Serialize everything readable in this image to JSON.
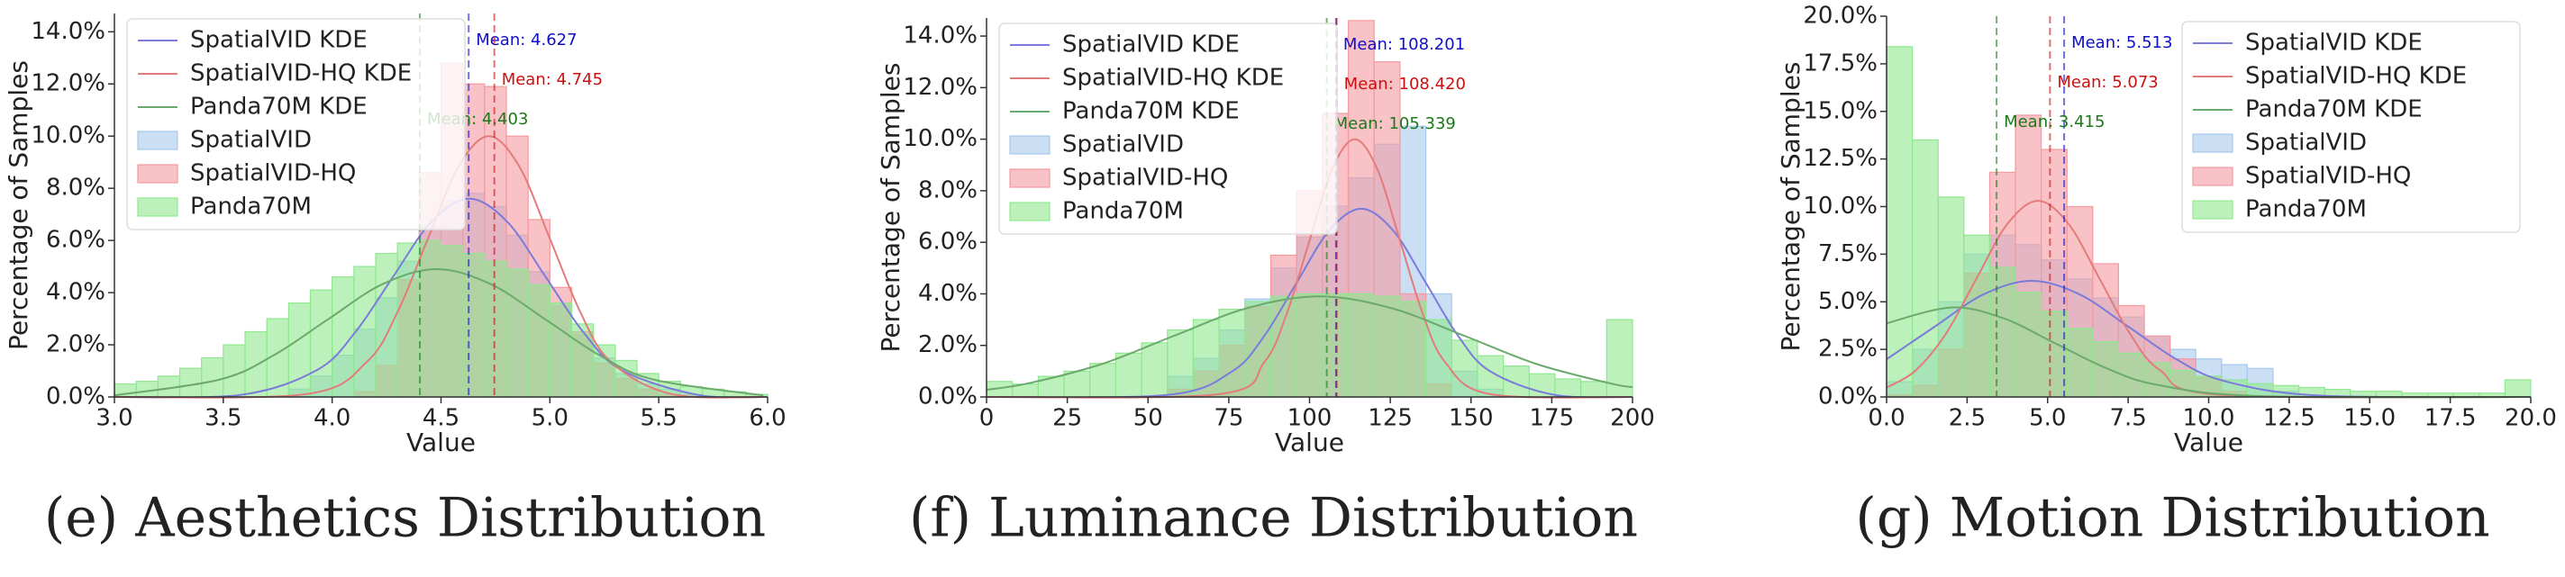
{
  "chart_data": [
    {
      "type": "histogram",
      "title": "(e) Aesthetics Distribution",
      "xlabel": "Value",
      "ylabel": "Percentage of Samples",
      "xlim": [
        3,
        6
      ],
      "ylim": [
        0,
        14.7
      ],
      "xticks": [
        {
          "value": 3,
          "label": "3.0"
        },
        3.5,
        {
          "value": 4,
          "label": "4.0"
        },
        4.5,
        {
          "value": 5,
          "label": "5.0"
        },
        5.5,
        {
          "value": 6,
          "label": "6.0"
        }
      ],
      "yticks": [
        {
          "value": 0,
          "label": "0.0%"
        },
        {
          "value": 2,
          "label": "2.0%"
        },
        {
          "value": 4,
          "label": "4.0%"
        },
        {
          "value": 6,
          "label": "6.0%"
        },
        {
          "value": 8,
          "label": "8.0%"
        },
        {
          "value": 10,
          "label": "10.0%"
        },
        {
          "value": 12,
          "label": "12.0%"
        },
        {
          "value": 14,
          "label": "14.0%"
        }
      ],
      "bins": [
        3.0,
        3.1,
        3.2,
        3.3,
        3.4,
        3.5,
        3.6,
        3.7,
        3.8,
        3.9,
        4.0,
        4.1,
        4.2,
        4.3,
        4.4,
        4.5,
        4.6,
        4.7,
        4.8,
        4.9,
        5.0,
        5.1,
        5.2,
        5.3,
        5.4,
        5.5,
        5.6,
        5.7,
        5.8,
        5.9,
        6.0
      ],
      "series": [
        {
          "name": "SpatialVID",
          "color": "#a6c8ec",
          "values": [
            0,
            0,
            0,
            0,
            0,
            0,
            0,
            0,
            0.3,
            0.8,
            1.6,
            2.6,
            3.8,
            5.2,
            6.5,
            7.5,
            7.8,
            7.3,
            6.2,
            4.8,
            3.5,
            2.4,
            1.5,
            0.9,
            0.5,
            0.3,
            0.1,
            0,
            0,
            0
          ]
        },
        {
          "name": "SpatialVID-HQ",
          "color": "#f59aa0",
          "values": [
            0,
            0,
            0,
            0,
            0,
            0,
            0,
            0,
            0,
            0,
            0,
            0.2,
            1.2,
            4.5,
            8.6,
            12.8,
            12.0,
            11.9,
            10.0,
            6.8,
            4.2,
            2.5,
            1.3,
            0.7,
            0.3,
            0.1,
            0,
            0,
            0,
            0
          ]
        },
        {
          "name": "Panda70M",
          "color": "#8fe88f",
          "values": [
            0.5,
            0.6,
            0.8,
            1.1,
            1.5,
            2.0,
            2.5,
            3.0,
            3.6,
            4.1,
            4.6,
            5.0,
            5.5,
            5.9,
            6.0,
            5.8,
            5.5,
            5.2,
            4.9,
            4.3,
            3.6,
            2.8,
            2.0,
            1.4,
            0.9,
            0.6,
            0.4,
            0.3,
            0.2,
            0.1
          ]
        }
      ],
      "kde": [
        {
          "name": "SpatialVID KDE",
          "color": "#7b7bdb",
          "x": [
            3.0,
            3.58,
            3.93,
            4.105,
            4.28,
            4.455,
            4.63,
            4.805,
            4.98,
            5.155,
            5.33,
            5.68,
            6.0
          ],
          "values": [
            0,
            0.08,
            1.03,
            2.47,
            4.61,
            6.71,
            7.6,
            6.71,
            4.61,
            2.47,
            1.03,
            0.08,
            0
          ]
        },
        {
          "name": "SpatialVID-HQ KDE",
          "color": "#e47b7b",
          "x": [
            3.0,
            3.88,
            4.16,
            4.3,
            4.44,
            4.58,
            4.72,
            4.86,
            5.0,
            5.14,
            5.28,
            5.56,
            6.0
          ],
          "values": [
            0,
            0.11,
            1.35,
            3.25,
            6.07,
            8.83,
            10.0,
            8.83,
            6.07,
            3.25,
            1.35,
            0.11,
            0
          ]
        },
        {
          "name": "Panda70M KDE",
          "color": "#6aaa6a",
          "x": [
            3.0,
            3.48,
            3.73,
            3.98,
            4.23,
            4.48,
            4.73,
            4.98,
            5.23,
            5.48,
            5.98
          ],
          "values": [
            0.06,
            0.66,
            1.59,
            2.97,
            4.32,
            4.9,
            4.32,
            2.97,
            1.59,
            0.66,
            0.06
          ]
        }
      ],
      "means": [
        {
          "value": 4.627,
          "label": "Mean: 4.627",
          "color": "#1010c8"
        },
        {
          "value": 4.745,
          "label": "Mean: 4.745",
          "color": "#cc1010"
        },
        {
          "value": 4.403,
          "label": "Mean: 4.403",
          "color": "#1a7a1a"
        }
      ],
      "legend": "upper left"
    },
    {
      "type": "histogram",
      "title": "(f) Luminance Distribution",
      "xlabel": "Value",
      "ylabel": "Percentage of Samples",
      "xlim": [
        0,
        200
      ],
      "ylim": [
        0,
        14.7
      ],
      "xticks": [
        0,
        25,
        50,
        75,
        100,
        125,
        150,
        175,
        200
      ],
      "yticks": [
        {
          "value": 0,
          "label": "0.0%"
        },
        {
          "value": 2,
          "label": "2.0%"
        },
        {
          "value": 4,
          "label": "4.0%"
        },
        {
          "value": 6,
          "label": "6.0%"
        },
        {
          "value": 8,
          "label": "8.0%"
        },
        {
          "value": 10,
          "label": "10.0%"
        },
        {
          "value": 12,
          "label": "12.0%"
        },
        {
          "value": 14,
          "label": "14.0%"
        }
      ],
      "bins": [
        0,
        8,
        16,
        24,
        32,
        40,
        48,
        56,
        64,
        72,
        80,
        88,
        96,
        104,
        112,
        120,
        128,
        136,
        144,
        152,
        160,
        168,
        176,
        184,
        192,
        200
      ],
      "series": [
        {
          "name": "SpatialVID",
          "color": "#a6c8ec",
          "values": [
            0,
            0,
            0,
            0,
            0,
            0,
            0,
            0.8,
            1.5,
            2.6,
            3.8,
            5.0,
            6.2,
            7.4,
            8.5,
            9.8,
            10.5,
            4.0,
            1.0,
            0.3,
            0,
            0,
            0,
            0,
            0
          ]
        },
        {
          "name": "SpatialVID-HQ",
          "color": "#f59aa0",
          "values": [
            0,
            0,
            0,
            0,
            0,
            0,
            0,
            0.3,
            1.0,
            2.0,
            3.5,
            5.5,
            8.0,
            11.0,
            14.6,
            13.0,
            4.0,
            0.5,
            0,
            0,
            0,
            0,
            0,
            0,
            0
          ]
        },
        {
          "name": "Panda70M",
          "color": "#8fe88f",
          "values": [
            0.6,
            0.5,
            0.8,
            1.0,
            1.3,
            1.7,
            2.1,
            2.6,
            3.0,
            3.4,
            3.7,
            3.9,
            4.0,
            4.0,
            4.0,
            3.9,
            3.7,
            3.0,
            2.2,
            1.6,
            1.2,
            0.9,
            0.7,
            0.6,
            3.0
          ]
        }
      ],
      "kde": [
        {
          "name": "SpatialVID KDE",
          "color": "#7b7bdb",
          "x": [
            0,
            56,
            76,
            86,
            96,
            106,
            116,
            126,
            136,
            146,
            156,
            176,
            200
          ],
          "values": [
            0,
            0.08,
            0.99,
            2.37,
            4.43,
            6.44,
            7.3,
            6.44,
            4.43,
            2.37,
            0.99,
            0.08,
            0
          ]
        },
        {
          "name": "SpatialVID-HQ KDE",
          "color": "#e47b7b",
          "x": [
            0,
            72,
            86,
            93,
            100,
            107,
            114,
            121,
            128,
            135,
            142,
            156,
            200
          ],
          "values": [
            0,
            0.11,
            1.35,
            3.25,
            6.07,
            8.83,
            10.0,
            8.83,
            6.07,
            3.25,
            1.35,
            0.11,
            0
          ]
        },
        {
          "name": "Panda70M KDE",
          "color": "#6aaa6a",
          "x": [
            0,
            13,
            35.5,
            58,
            80.5,
            103,
            125.5,
            148,
            170.5,
            193,
            200
          ],
          "values": [
            0.28,
            0.53,
            1.27,
            2.37,
            3.44,
            3.9,
            3.44,
            2.37,
            1.27,
            0.53,
            0.38
          ]
        }
      ],
      "means": [
        {
          "value": 108.201,
          "label": "Mean: 108.201",
          "color": "#1010c8"
        },
        {
          "value": 108.42,
          "label": "Mean: 108.420",
          "color": "#cc1010"
        },
        {
          "value": 105.339,
          "label": "Mean: 105.339",
          "color": "#1a7a1a"
        }
      ],
      "legend": "upper left"
    },
    {
      "type": "histogram",
      "title": "(g) Motion Distribution",
      "xlabel": "Value",
      "ylabel": "Percentage of Samples",
      "xlim": [
        0,
        20
      ],
      "ylim": [
        0,
        20
      ],
      "xticks": [
        {
          "value": 0,
          "label": "0.0"
        },
        2.5,
        {
          "value": 5,
          "label": "5.0"
        },
        7.5,
        {
          "value": 10,
          "label": "10.0"
        },
        12.5,
        {
          "value": 15,
          "label": "15.0"
        },
        17.5,
        {
          "value": 20,
          "label": "20.0"
        }
      ],
      "yticks": [
        {
          "value": 0,
          "label": "0.0%"
        },
        {
          "value": 2.5,
          "label": "2.5%"
        },
        {
          "value": 5,
          "label": "5.0%"
        },
        {
          "value": 7.5,
          "label": "7.5%"
        },
        {
          "value": 10,
          "label": "10.0%"
        },
        {
          "value": 12.5,
          "label": "12.5%"
        },
        {
          "value": 15,
          "label": "15.0%"
        },
        {
          "value": 17.5,
          "label": "17.5%"
        },
        {
          "value": 20,
          "label": "20.0%"
        }
      ],
      "bins": [
        0,
        0.8,
        1.6,
        2.4,
        3.2,
        4,
        4.8,
        5.6,
        6.4,
        7.2,
        8,
        8.8,
        9.6,
        10.4,
        11.2,
        12,
        12.8,
        13.6,
        14.4,
        15.2,
        16,
        16.8,
        17.6,
        18.4,
        19.2,
        20
      ],
      "series": [
        {
          "name": "SpatialVID",
          "color": "#a6c8ec",
          "values": [
            0.8,
            2.5,
            5.0,
            7.5,
            8.5,
            8.0,
            7.2,
            6.2,
            5.2,
            4.2,
            3.2,
            2.5,
            2.0,
            1.7,
            1.5,
            0.3,
            0,
            0,
            0,
            0,
            0,
            0,
            0,
            0,
            0
          ]
        },
        {
          "name": "SpatialVID-HQ",
          "color": "#f59aa0",
          "values": [
            0.1,
            0.6,
            2.5,
            6.5,
            11.8,
            14.8,
            13.0,
            10.0,
            7.0,
            4.8,
            3.2,
            2.0,
            1.0,
            0.3,
            0,
            0,
            0,
            0,
            0,
            0,
            0,
            0,
            0,
            0,
            0
          ]
        },
        {
          "name": "Panda70M",
          "color": "#8fe88f",
          "values": [
            18.4,
            13.5,
            10.5,
            8.5,
            6.8,
            5.5,
            4.5,
            3.6,
            2.9,
            2.3,
            1.8,
            1.4,
            1.1,
            0.9,
            0.7,
            0.6,
            0.5,
            0.4,
            0.3,
            0.3,
            0.2,
            0.2,
            0.2,
            0.2,
            0.9
          ]
        }
      ],
      "kde": [
        {
          "name": "SpatialVID KDE",
          "color": "#7b7bdb",
          "x": [
            0,
            1.5,
            3,
            4.5,
            6,
            7.5,
            9,
            10.5,
            13.5,
            20
          ],
          "values": [
            1.98,
            3.7,
            5.38,
            6.1,
            5.38,
            3.7,
            1.98,
            0.83,
            0.07,
            0
          ]
        },
        {
          "name": "SpatialVID-HQ KDE",
          "color": "#e47b7b",
          "x": [
            0,
            0.9,
            1.85,
            2.8,
            3.75,
            4.7,
            5.65,
            6.6,
            7.55,
            8.5,
            10.4,
            20
          ],
          "values": [
            0.49,
            1.39,
            3.34,
            6.25,
            9.09,
            10.3,
            9.09,
            6.25,
            3.34,
            1.39,
            0.11,
            0
          ]
        },
        {
          "name": "Panda70M KDE",
          "color": "#6aaa6a",
          "x": [
            0,
            2,
            3.6,
            5.2,
            6.8,
            8.4,
            11.6,
            20
          ],
          "values": [
            3.87,
            4.7,
            4.15,
            2.85,
            1.53,
            0.64,
            0.05,
            0
          ]
        }
      ],
      "means": [
        {
          "value": 5.513,
          "label": "Mean: 5.513",
          "color": "#1010c8"
        },
        {
          "value": 5.073,
          "label": "Mean: 5.073",
          "color": "#cc1010"
        },
        {
          "value": 3.415,
          "label": "Mean: 3.415",
          "color": "#1a7a1a"
        }
      ],
      "legend": "upper right"
    }
  ]
}
